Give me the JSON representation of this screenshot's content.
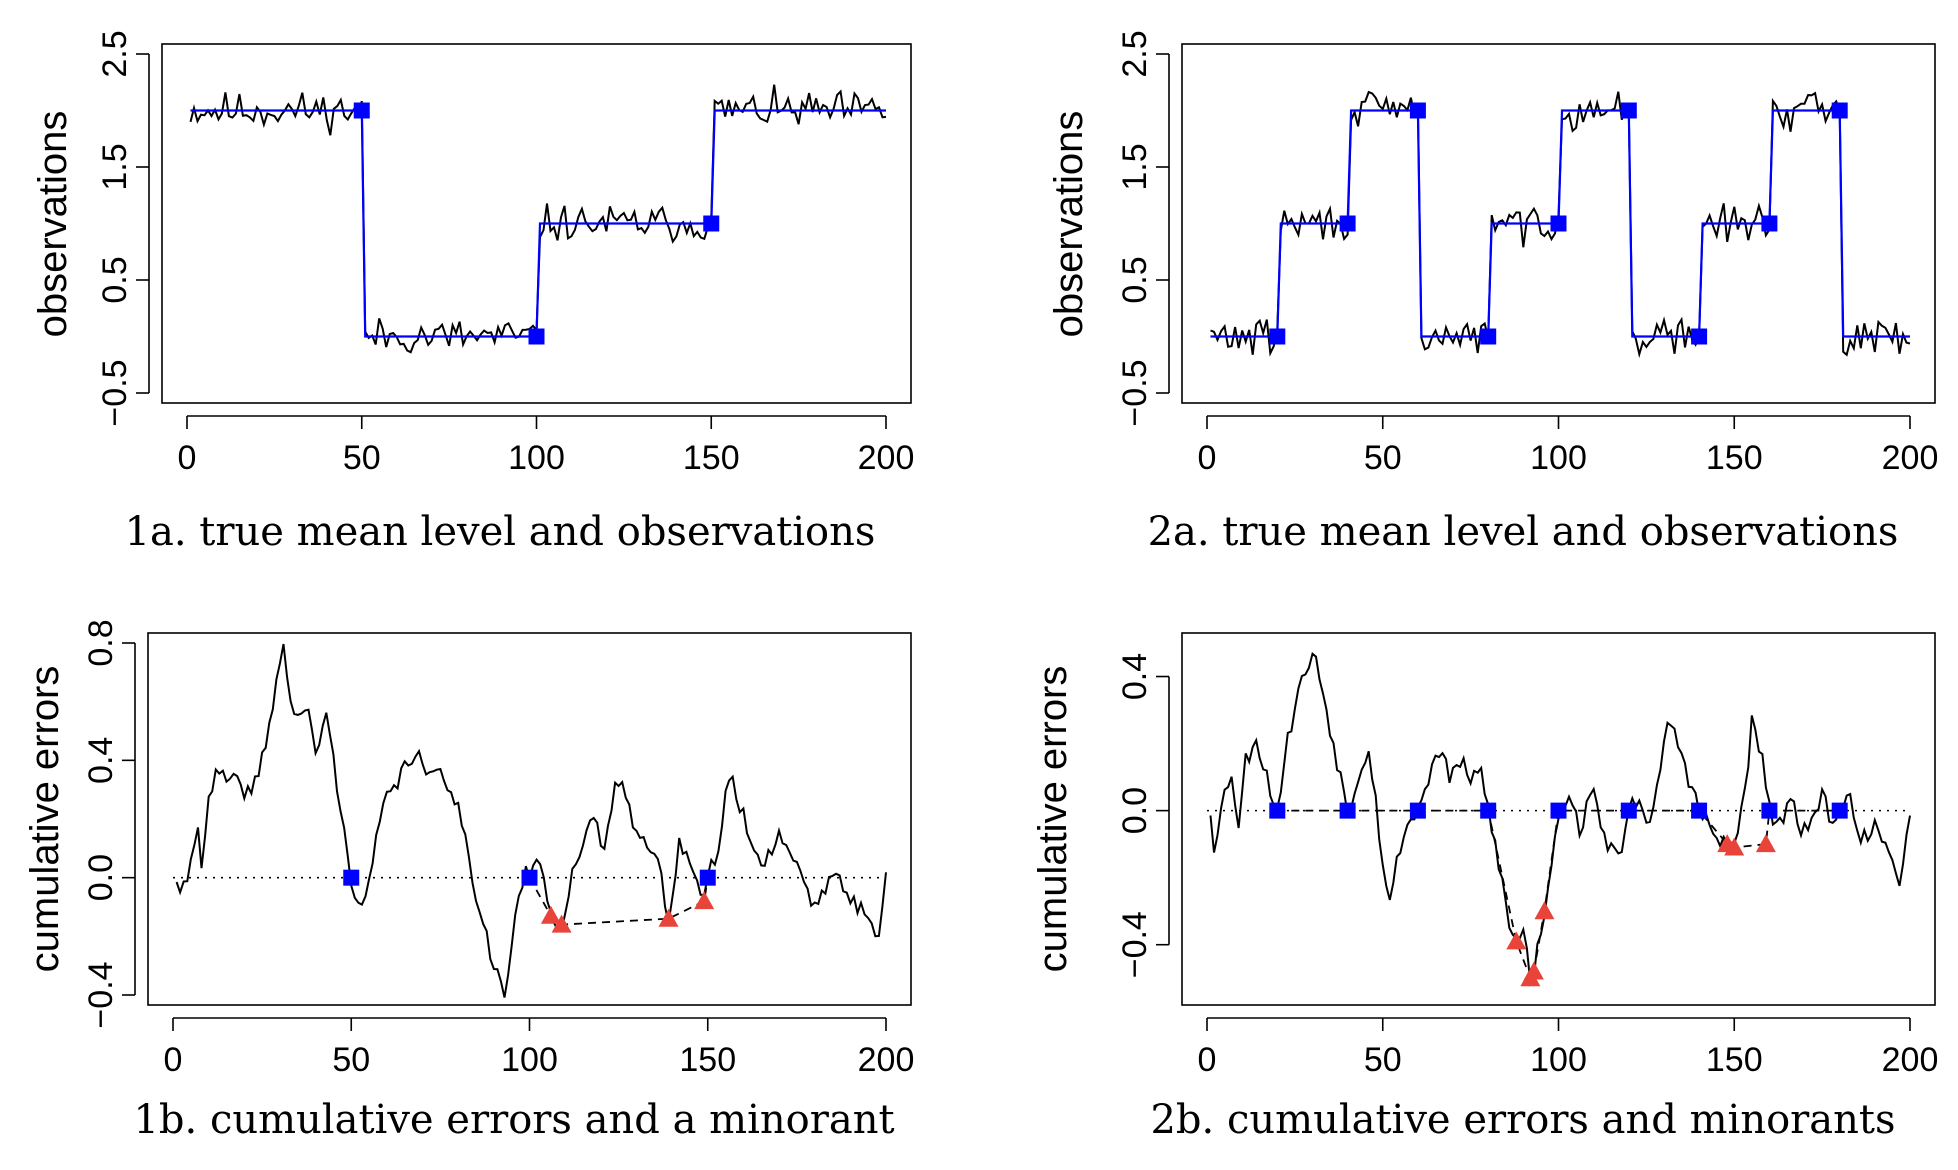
{
  "colors": {
    "observations": "#000000",
    "true_mean": "#0000ff",
    "change_points": "#0000ff",
    "minorant_points": "#e8443a",
    "axis": "#000000",
    "reference_line": "#000000"
  },
  "chart_data": [
    {
      "type": "line",
      "caption": "1a. true mean level and observations",
      "ylabel": "observations",
      "xlabel": "",
      "xlim": [
        0,
        200
      ],
      "ylim": [
        -0.5,
        2.5
      ],
      "x_ticks": [
        "0",
        "50",
        "100",
        "150",
        "200"
      ],
      "y_ticks": [
        "−0.5",
        "0.5",
        "1.5",
        "2.5"
      ],
      "y_tick_values": [
        -0.5,
        0.5,
        1.5,
        2.5
      ],
      "true_mean_segments": [
        {
          "x_start": 1,
          "x_end": 50,
          "level": 2.0
        },
        {
          "x_start": 51,
          "x_end": 100,
          "level": 0.0
        },
        {
          "x_start": 101,
          "x_end": 150,
          "level": 1.0
        },
        {
          "x_start": 151,
          "x_end": 200,
          "level": 2.0
        }
      ],
      "change_point_markers": [
        {
          "x": 50,
          "y": 2.0
        },
        {
          "x": 100,
          "y": 0.0
        },
        {
          "x": 150,
          "y": 1.0
        }
      ],
      "noise_amplitude": 0.1,
      "noise_seed": 11
    },
    {
      "type": "line",
      "caption": "2a. true mean level and observations",
      "ylabel": "observations",
      "xlabel": "",
      "xlim": [
        0,
        200
      ],
      "ylim": [
        -0.5,
        2.5
      ],
      "x_ticks": [
        "0",
        "50",
        "100",
        "150",
        "200"
      ],
      "y_ticks": [
        "−0.5",
        "0.5",
        "1.5",
        "2.5"
      ],
      "y_tick_values": [
        -0.5,
        0.5,
        1.5,
        2.5
      ],
      "true_mean_segments": [
        {
          "x_start": 1,
          "x_end": 20,
          "level": 0.0
        },
        {
          "x_start": 21,
          "x_end": 40,
          "level": 1.0
        },
        {
          "x_start": 41,
          "x_end": 60,
          "level": 2.0
        },
        {
          "x_start": 61,
          "x_end": 80,
          "level": 0.0
        },
        {
          "x_start": 81,
          "x_end": 100,
          "level": 1.0
        },
        {
          "x_start": 101,
          "x_end": 120,
          "level": 2.0
        },
        {
          "x_start": 121,
          "x_end": 140,
          "level": 0.0
        },
        {
          "x_start": 141,
          "x_end": 160,
          "level": 1.0
        },
        {
          "x_start": 161,
          "x_end": 180,
          "level": 2.0
        },
        {
          "x_start": 181,
          "x_end": 200,
          "level": 0.0
        }
      ],
      "change_point_markers": [
        {
          "x": 20,
          "y": 0.0
        },
        {
          "x": 40,
          "y": 1.0
        },
        {
          "x": 60,
          "y": 2.0
        },
        {
          "x": 80,
          "y": 0.0
        },
        {
          "x": 100,
          "y": 1.0
        },
        {
          "x": 120,
          "y": 2.0
        },
        {
          "x": 140,
          "y": 0.0
        },
        {
          "x": 160,
          "y": 1.0
        },
        {
          "x": 180,
          "y": 2.0
        }
      ],
      "noise_amplitude": 0.1,
      "noise_seed": 29
    },
    {
      "type": "line",
      "caption": "1b. cumulative errors and a minorant",
      "ylabel": "cumulative errors",
      "xlabel": "",
      "xlim": [
        0,
        200
      ],
      "ylim": [
        -0.4,
        0.8
      ],
      "x_ticks": [
        "0",
        "50",
        "100",
        "150",
        "200"
      ],
      "y_ticks": [
        "−0.4",
        "0.0",
        "0.4",
        "0.8"
      ],
      "y_tick_values": [
        -0.4,
        0.0,
        0.4,
        0.8
      ],
      "reference_level": 0.0,
      "anchors": [
        [
          1,
          0.0
        ],
        [
          2,
          -0.08
        ],
        [
          5,
          0.05
        ],
        [
          7,
          0.2
        ],
        [
          8,
          0.05
        ],
        [
          10,
          0.25
        ],
        [
          12,
          0.35
        ],
        [
          18,
          0.32
        ],
        [
          22,
          0.28
        ],
        [
          26,
          0.45
        ],
        [
          28,
          0.6
        ],
        [
          31,
          0.8
        ],
        [
          33,
          0.58
        ],
        [
          38,
          0.55
        ],
        [
          40,
          0.42
        ],
        [
          43,
          0.56
        ],
        [
          45,
          0.4
        ],
        [
          48,
          0.15
        ],
        [
          50,
          0.0
        ],
        [
          53,
          -0.12
        ],
        [
          56,
          0.05
        ],
        [
          59,
          0.25
        ],
        [
          62,
          0.3
        ],
        [
          65,
          0.38
        ],
        [
          68,
          0.43
        ],
        [
          72,
          0.33
        ],
        [
          75,
          0.38
        ],
        [
          78,
          0.3
        ],
        [
          81,
          0.2
        ],
        [
          84,
          0.0
        ],
        [
          87,
          -0.15
        ],
        [
          90,
          -0.3
        ],
        [
          93,
          -0.4
        ],
        [
          96,
          -0.15
        ],
        [
          99,
          0.05
        ],
        [
          100,
          0.0
        ],
        [
          103,
          0.05
        ],
        [
          106,
          -0.13
        ],
        [
          109,
          -0.16
        ],
        [
          112,
          0.02
        ],
        [
          115,
          0.1
        ],
        [
          118,
          0.2
        ],
        [
          121,
          0.1
        ],
        [
          124,
          0.3
        ],
        [
          126,
          0.35
        ],
        [
          129,
          0.2
        ],
        [
          133,
          0.1
        ],
        [
          136,
          0.05
        ],
        [
          139,
          -0.14
        ],
        [
          142,
          0.12
        ],
        [
          145,
          0.06
        ],
        [
          148,
          -0.08
        ],
        [
          150,
          0.0
        ],
        [
          153,
          0.1
        ],
        [
          156,
          0.35
        ],
        [
          159,
          0.25
        ],
        [
          162,
          0.12
        ],
        [
          166,
          0.05
        ],
        [
          170,
          0.15
        ],
        [
          175,
          0.05
        ],
        [
          180,
          -0.1
        ],
        [
          185,
          0.02
        ],
        [
          190,
          -0.08
        ],
        [
          195,
          -0.12
        ],
        [
          198,
          -0.2
        ],
        [
          200,
          0.0
        ]
      ],
      "noise_amplitude": 0.03,
      "noise_seed": 41,
      "change_point_markers": [
        {
          "x": 50,
          "y": 0.0
        },
        {
          "x": 100,
          "y": 0.0
        },
        {
          "x": 150,
          "y": 0.0
        }
      ],
      "minorant_points": [
        {
          "x": 106,
          "y": -0.13
        },
        {
          "x": 109,
          "y": -0.16
        },
        {
          "x": 139,
          "y": -0.14
        },
        {
          "x": 149,
          "y": -0.08
        }
      ],
      "minorant_path": [
        [
          100,
          0.0
        ],
        [
          106,
          -0.13
        ],
        [
          109,
          -0.16
        ],
        [
          139,
          -0.14
        ],
        [
          149,
          -0.08
        ],
        [
          150,
          0.0
        ]
      ]
    },
    {
      "type": "line",
      "caption": "2b. cumulative errors and minorants",
      "ylabel": "cumulative errors",
      "xlabel": "",
      "xlim": [
        0,
        200
      ],
      "ylim": [
        -0.55,
        0.5
      ],
      "x_ticks": [
        "0",
        "50",
        "100",
        "150",
        "200"
      ],
      "y_ticks": [
        "−0.4",
        "0.0",
        "0.4"
      ],
      "y_tick_values": [
        -0.4,
        0.0,
        0.4
      ],
      "reference_level": 0.0,
      "anchors": [
        [
          1,
          0.0
        ],
        [
          2,
          -0.1
        ],
        [
          5,
          0.05
        ],
        [
          7,
          0.12
        ],
        [
          9,
          -0.05
        ],
        [
          11,
          0.15
        ],
        [
          14,
          0.22
        ],
        [
          17,
          0.1
        ],
        [
          20,
          0.0
        ],
        [
          22,
          0.15
        ],
        [
          25,
          0.32
        ],
        [
          28,
          0.42
        ],
        [
          31,
          0.46
        ],
        [
          34,
          0.3
        ],
        [
          37,
          0.15
        ],
        [
          40,
          0.0
        ],
        [
          43,
          0.1
        ],
        [
          46,
          0.2
        ],
        [
          48,
          0.03
        ],
        [
          50,
          -0.15
        ],
        [
          52,
          -0.28
        ],
        [
          55,
          -0.1
        ],
        [
          58,
          -0.02
        ],
        [
          60,
          0.0
        ],
        [
          63,
          0.1
        ],
        [
          66,
          0.18
        ],
        [
          69,
          0.1
        ],
        [
          72,
          0.15
        ],
        [
          75,
          0.08
        ],
        [
          78,
          0.12
        ],
        [
          80,
          0.0
        ],
        [
          83,
          -0.15
        ],
        [
          86,
          -0.35
        ],
        [
          88,
          -0.39
        ],
        [
          90,
          -0.35
        ],
        [
          92,
          -0.5
        ],
        [
          93,
          -0.48
        ],
        [
          95,
          -0.35
        ],
        [
          96,
          -0.3
        ],
        [
          98,
          -0.15
        ],
        [
          100,
          0.0
        ],
        [
          103,
          0.05
        ],
        [
          106,
          -0.05
        ],
        [
          110,
          0.05
        ],
        [
          114,
          -0.1
        ],
        [
          117,
          -0.15
        ],
        [
          120,
          0.0
        ],
        [
          123,
          0.05
        ],
        [
          126,
          -0.05
        ],
        [
          129,
          0.1
        ],
        [
          131,
          0.28
        ],
        [
          134,
          0.2
        ],
        [
          137,
          0.1
        ],
        [
          140,
          0.0
        ],
        [
          143,
          -0.05
        ],
        [
          146,
          -0.1
        ],
        [
          148,
          -0.1
        ],
        [
          150,
          -0.1
        ],
        [
          153,
          0.05
        ],
        [
          155,
          0.26
        ],
        [
          158,
          0.15
        ],
        [
          160,
          0.0
        ],
        [
          163,
          -0.05
        ],
        [
          166,
          0.05
        ],
        [
          169,
          -0.1
        ],
        [
          172,
          0.0
        ],
        [
          175,
          0.05
        ],
        [
          178,
          -0.05
        ],
        [
          180,
          0.0
        ],
        [
          183,
          0.05
        ],
        [
          186,
          -0.08
        ],
        [
          190,
          -0.05
        ],
        [
          194,
          -0.15
        ],
        [
          197,
          -0.2
        ],
        [
          200,
          0.0
        ]
      ],
      "noise_amplitude": 0.03,
      "noise_seed": 53,
      "change_point_markers": [
        {
          "x": 20,
          "y": 0.0
        },
        {
          "x": 40,
          "y": 0.0
        },
        {
          "x": 60,
          "y": 0.0
        },
        {
          "x": 80,
          "y": 0.0
        },
        {
          "x": 100,
          "y": 0.0
        },
        {
          "x": 120,
          "y": 0.0
        },
        {
          "x": 140,
          "y": 0.0
        },
        {
          "x": 160,
          "y": 0.0
        },
        {
          "x": 180,
          "y": 0.0
        }
      ],
      "minorant_points": [
        {
          "x": 88,
          "y": -0.39
        },
        {
          "x": 92,
          "y": -0.5
        },
        {
          "x": 93,
          "y": -0.48
        },
        {
          "x": 96,
          "y": -0.3
        },
        {
          "x": 148,
          "y": -0.1
        },
        {
          "x": 150,
          "y": -0.11
        },
        {
          "x": 159,
          "y": -0.1
        }
      ],
      "minorant_path": [
        [
          20,
          0.0
        ],
        [
          40,
          0.0
        ],
        [
          60,
          0.0
        ],
        [
          80,
          0.0
        ],
        [
          88,
          -0.39
        ],
        [
          92,
          -0.5
        ],
        [
          93,
          -0.48
        ],
        [
          96,
          -0.3
        ],
        [
          100,
          0.0
        ],
        [
          120,
          0.0
        ],
        [
          140,
          0.0
        ],
        [
          148,
          -0.1
        ],
        [
          150,
          -0.11
        ],
        [
          159,
          -0.1
        ],
        [
          160,
          0.0
        ],
        [
          180,
          0.0
        ]
      ]
    }
  ]
}
